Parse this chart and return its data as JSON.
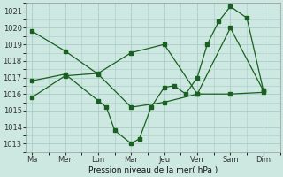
{
  "background_color": "#cce8e0",
  "grid_color": "#aacccc",
  "line_color": "#1a6020",
  "xlabel": "Pression niveau de la mer( hPa )",
  "ylim": [
    1012.5,
    1021.5
  ],
  "yticks": [
    1013,
    1014,
    1015,
    1016,
    1017,
    1018,
    1019,
    1020,
    1021
  ],
  "xtick_labels": [
    "Ma",
    "Mer",
    "Lun",
    "Mar",
    "Jeu",
    "Ven",
    "Sam",
    "Dim"
  ],
  "xtick_positions": [
    0,
    1,
    2,
    3,
    4,
    5,
    6,
    7
  ],
  "xlim": [
    -0.2,
    7.5
  ],
  "line1_x": [
    0,
    1,
    2,
    3,
    4,
    5,
    6,
    7
  ],
  "line1_y": [
    1019.8,
    1018.6,
    1017.2,
    1015.2,
    1015.5,
    1016.0,
    1020.0,
    1016.2
  ],
  "line2_x": [
    0,
    1,
    2,
    2.25,
    2.5,
    3,
    3.25,
    3.6,
    4,
    4.3,
    4.65,
    5,
    5.3,
    5.65,
    6,
    6.5,
    7
  ],
  "line2_y": [
    1016.8,
    1017.2,
    1015.6,
    1015.2,
    1013.8,
    1013.0,
    1013.3,
    1015.2,
    1016.4,
    1016.5,
    1016.0,
    1017.0,
    1019.0,
    1020.4,
    1021.3,
    1020.6,
    1016.2
  ],
  "line3_x": [
    0,
    1,
    2,
    3,
    4,
    5,
    6,
    7
  ],
  "line3_y": [
    1015.8,
    1017.1,
    1017.25,
    1018.5,
    1019.0,
    1016.0,
    1016.0,
    1016.1
  ]
}
